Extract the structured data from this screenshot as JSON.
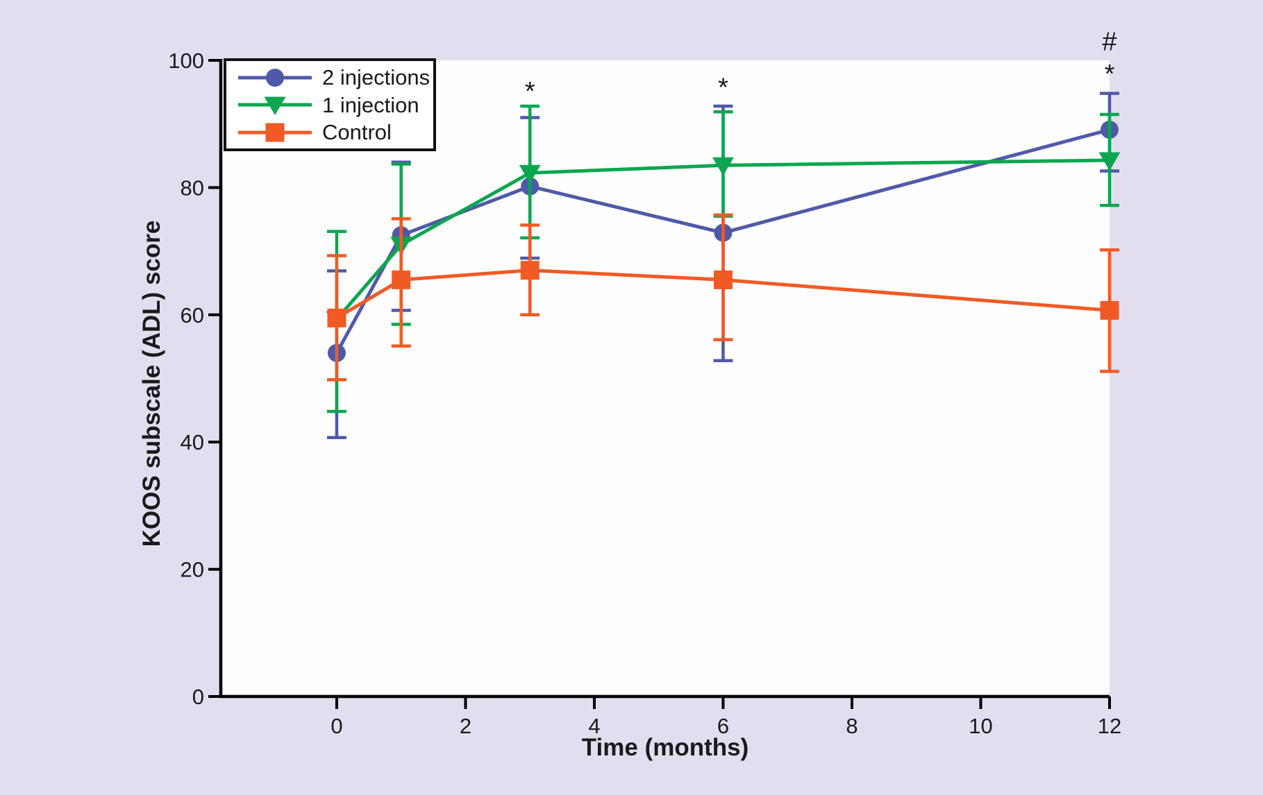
{
  "chart_data": {
    "type": "line",
    "title": "",
    "xlabel": "Time (months)",
    "ylabel": "KOOS subscale (ADL) score",
    "x": [
      0,
      1,
      3,
      6,
      12
    ],
    "x_ticks": [
      0,
      2,
      4,
      6,
      8,
      10,
      12
    ],
    "y_ticks": [
      0,
      20,
      40,
      60,
      80,
      100
    ],
    "xlim": [
      -1.8,
      12
    ],
    "ylim": [
      0,
      100
    ],
    "grid": false,
    "legend_position": "top-left",
    "series": [
      {
        "name": "2 injections",
        "marker": "circle",
        "color": "#4e5aa8",
        "values": [
          54.0,
          72.5,
          80.2,
          72.9,
          89.1
        ],
        "err_low": [
          40.7,
          60.7,
          68.9,
          52.8,
          82.6
        ],
        "err_high": [
          66.9,
          84.0,
          91.0,
          92.8,
          94.8
        ]
      },
      {
        "name": "1 injection",
        "marker": "triangle-down",
        "color": "#0ba64f",
        "values": [
          59.3,
          71.0,
          82.3,
          83.5,
          84.3
        ],
        "err_low": [
          44.8,
          58.5,
          72.1,
          75.5,
          77.2
        ],
        "err_high": [
          73.1,
          83.7,
          92.8,
          91.9,
          91.5
        ]
      },
      {
        "name": "Control",
        "marker": "square",
        "color": "#f15a25",
        "values": [
          59.5,
          65.5,
          67.0,
          65.5,
          60.7
        ],
        "err_low": [
          49.8,
          55.1,
          60.0,
          56.1,
          51.1
        ],
        "err_high": [
          69.3,
          75.1,
          74.1,
          75.7,
          70.2
        ]
      }
    ],
    "annotations": [
      {
        "text": "*",
        "x": 3,
        "y": 95.1
      },
      {
        "text": "*",
        "x": 6,
        "y": 95.7
      },
      {
        "text": "*",
        "x": 12,
        "y": 97.8
      },
      {
        "text": "#",
        "x": 12,
        "y": 102.9
      }
    ],
    "colors": {
      "background": "#e3deef",
      "plot_background": "#fffefe",
      "axis": "#000000",
      "text": "#1a1a1a"
    }
  }
}
